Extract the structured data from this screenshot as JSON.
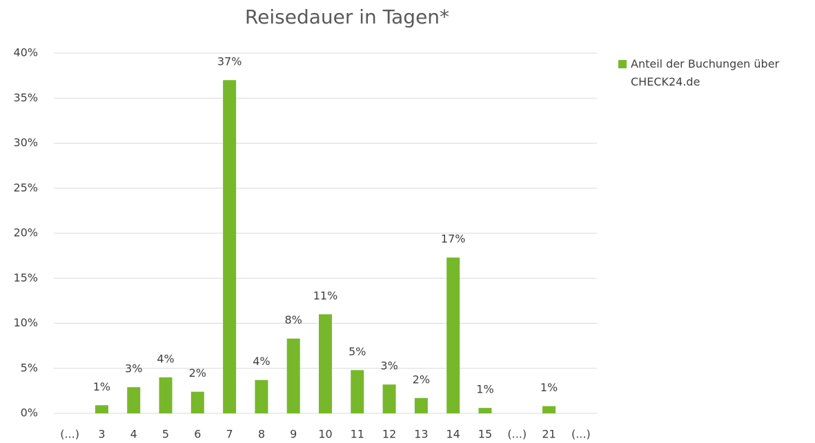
{
  "chart_data": {
    "type": "bar",
    "title": "Reisedauer in Tagen*",
    "categories": [
      "(...)",
      "3",
      "4",
      "5",
      "6",
      "7",
      "8",
      "9",
      "10",
      "11",
      "12",
      "13",
      "14",
      "15",
      "(...)",
      "21",
      "(...)"
    ],
    "series": [
      {
        "name": "Anteil der Buchungen über CHECK24.de",
        "color": "#76b82a",
        "values": [
          null,
          0.9,
          2.9,
          4.0,
          2.4,
          37.0,
          3.7,
          8.3,
          11.0,
          4.8,
          3.2,
          1.7,
          17.3,
          0.6,
          null,
          0.8,
          null
        ],
        "value_labels": [
          null,
          "1%",
          "3%",
          "4%",
          "2%",
          "37%",
          "4%",
          "8%",
          "11%",
          "5%",
          "3%",
          "2%",
          "17%",
          "1%",
          null,
          "1%",
          null
        ]
      }
    ],
    "ylim": [
      0,
      40
    ],
    "yticks": [
      {
        "value": 0,
        "label": "0%"
      },
      {
        "value": 5,
        "label": "5%"
      },
      {
        "value": 10,
        "label": "10%"
      },
      {
        "value": 15,
        "label": "15%"
      },
      {
        "value": 20,
        "label": "20%"
      },
      {
        "value": 25,
        "label": "25%"
      },
      {
        "value": 30,
        "label": "30%"
      },
      {
        "value": 35,
        "label": "35%"
      },
      {
        "value": 40,
        "label": "40%"
      }
    ],
    "grid": true,
    "legend": "right"
  }
}
